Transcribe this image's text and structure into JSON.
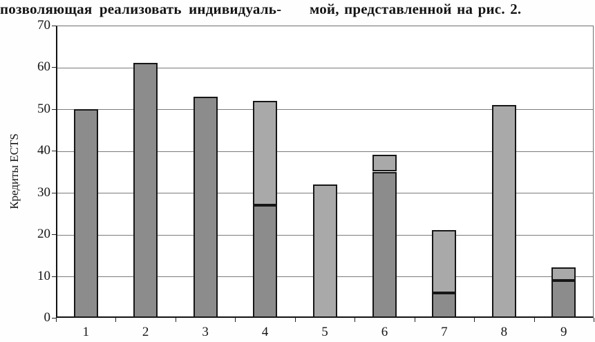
{
  "header": {
    "left_text": "позволяющая реализовать индивидуаль-",
    "right_text": "мой, представленной на рис. 2."
  },
  "chart_data": {
    "type": "bar",
    "stacked": true,
    "title": "",
    "categories": [
      "1",
      "2",
      "3",
      "4",
      "5",
      "6",
      "7",
      "8",
      "9"
    ],
    "series": [
      {
        "name": "dark-gray-bottom-segment",
        "color": "#8c8c8c",
        "values": [
          50,
          61,
          53,
          27,
          0,
          35,
          6,
          0,
          9
        ]
      },
      {
        "name": "light-gray-top-segment",
        "color": "#a9a9a9",
        "values": [
          0,
          0,
          0,
          25,
          32,
          4,
          15,
          51,
          3
        ]
      }
    ],
    "totals": [
      50,
      61,
      53,
      52,
      32,
      39,
      21,
      51,
      12
    ],
    "xlabel": "",
    "ylabel": "Кредиты ECTS",
    "ylim": [
      0,
      70
    ],
    "yticks": [
      0,
      10,
      20,
      30,
      40,
      50,
      60,
      70
    ],
    "grid": true,
    "legend_position": "none"
  }
}
